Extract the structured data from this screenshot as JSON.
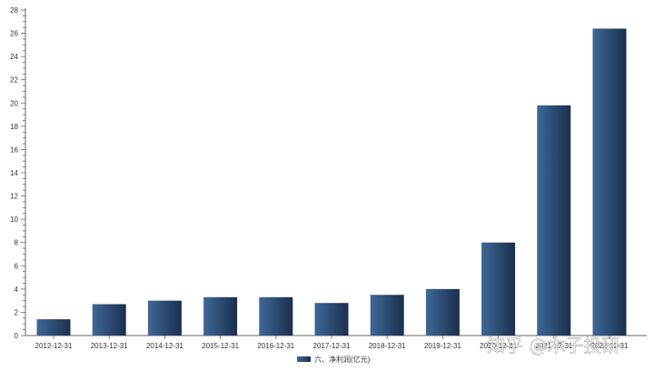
{
  "chart_data": {
    "type": "bar",
    "categories": [
      "2012-12-31",
      "2013-12-31",
      "2014-12-31",
      "2015-12-31",
      "2016-12-31",
      "2017-12-31",
      "2018-12-31",
      "2019-12-31",
      "2020-12-31",
      "2021-12-31",
      "2022-12-31"
    ],
    "series": [
      {
        "name": "六、净利润(亿元)",
        "values": [
          1.4,
          2.7,
          3.0,
          3.3,
          3.3,
          2.8,
          3.5,
          4.0,
          8.0,
          19.8,
          26.4
        ]
      }
    ],
    "ylim": [
      0,
      28
    ],
    "yticks": [
      0,
      2,
      4,
      6,
      8,
      10,
      12,
      14,
      16,
      18,
      20,
      22,
      24,
      26,
      28
    ],
    "grid": false,
    "legend": "bottom-center",
    "colors": {
      "bar_light": "#3f6797",
      "bar_dark": "#1b2f4d",
      "axis": "#666666"
    }
  },
  "watermark": "知乎 @木子投研"
}
